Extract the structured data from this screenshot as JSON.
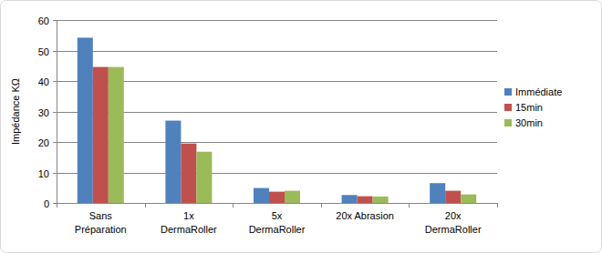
{
  "chart_data": {
    "type": "bar",
    "y_label": "Impédance KΩ",
    "categories": [
      "Sans Préparation",
      "1x DermaRoller",
      "5x DermaRoller",
      "20x Abrasion",
      "20x DermaRoller"
    ],
    "series": [
      {
        "name": "Immédiate",
        "color": "#4f81bd",
        "values": [
          54.2,
          27,
          4.9,
          2.6,
          6.5
        ]
      },
      {
        "name": "15min",
        "color": "#c0504d",
        "values": [
          44.6,
          19.5,
          3.7,
          2.2,
          4.0
        ]
      },
      {
        "name": "30min",
        "color": "#9bbb59",
        "values": [
          44.6,
          16.8,
          4.0,
          2.1,
          2.8
        ]
      }
    ],
    "ylim": [
      0,
      60
    ],
    "yticks": [
      0,
      10,
      20,
      30,
      40,
      50,
      60
    ],
    "grid": true,
    "legend": "right"
  }
}
